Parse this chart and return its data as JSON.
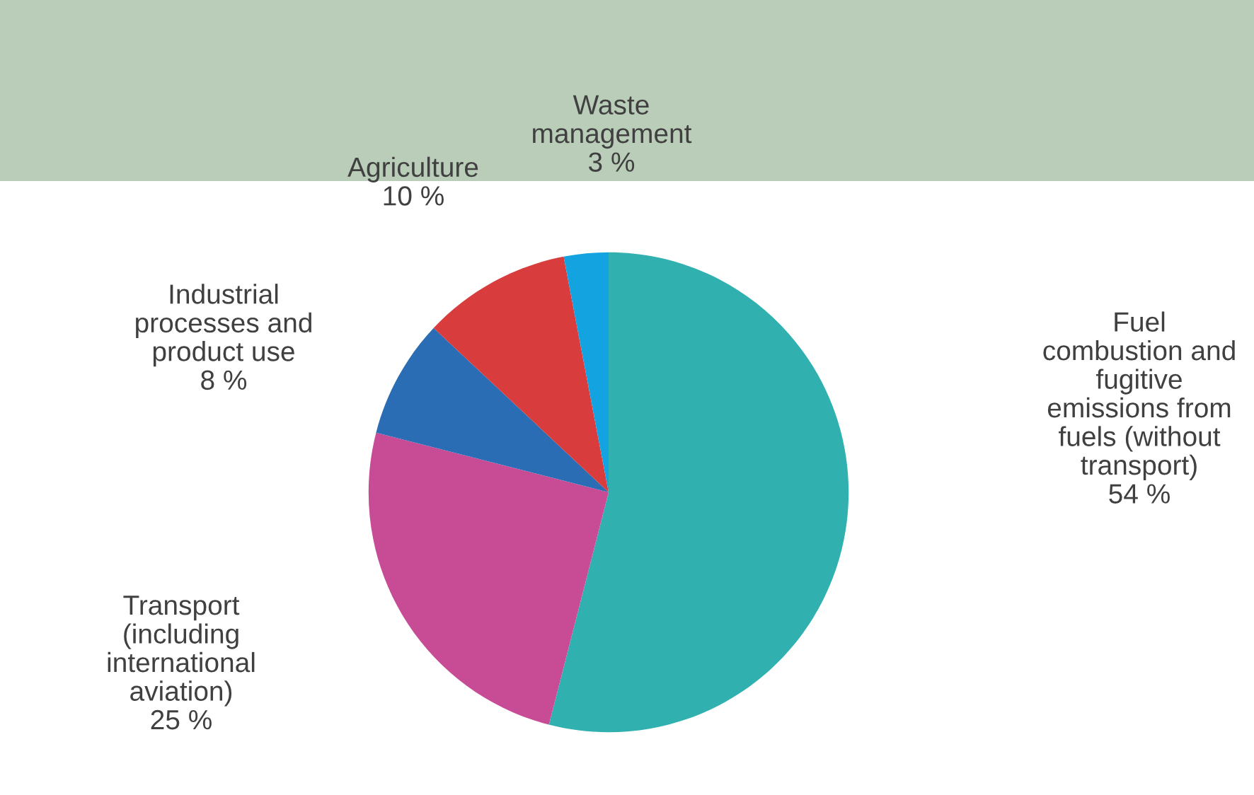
{
  "chart_data": {
    "type": "pie",
    "categories": [
      "Fuel\ncombustion and\nfugitive\nemissions from\nfuels (without\ntransport)",
      "Transport\n(including\ninternational\naviation)",
      "Industrial\nprocesses and\nproduct use",
      "Agriculture",
      "Waste\nmanagement"
    ],
    "values": [
      54,
      25,
      8,
      10,
      3
    ],
    "colors": [
      "#31b0b0",
      "#c84b96",
      "#2a6db5",
      "#d83c3c",
      "#12a3e0"
    ],
    "value_labels": [
      "54 %",
      "25 %",
      "8 %",
      "10 %",
      "3 %"
    ]
  }
}
